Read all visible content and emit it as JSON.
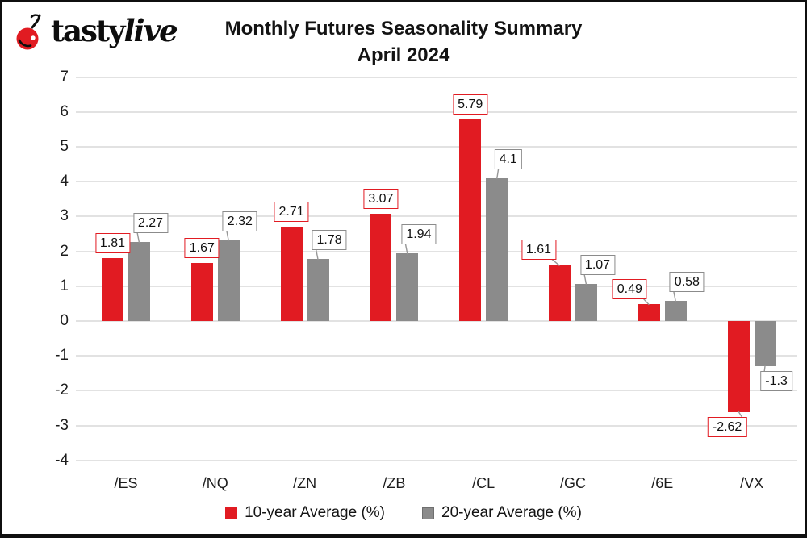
{
  "logo": {
    "tasty": "tasty",
    "live": "live"
  },
  "title": {
    "line1": "Monthly Futures Seasonality Summary",
    "line2": "April 2024"
  },
  "legend": {
    "items": [
      {
        "label": "10-year Average (%)",
        "color": "#e11b22"
      },
      {
        "label": "20-year Average (%)",
        "color": "#8b8b8b"
      }
    ]
  },
  "colors": {
    "red": "#e11b22",
    "gray": "#8b8b8b",
    "gridline": "#e2e2e2",
    "connector": "#979797",
    "text": "#1c1c1c",
    "label_background": "#ffffff"
  },
  "chart_data": {
    "type": "bar",
    "title": "Monthly Futures Seasonality Summary",
    "subtitle": "April 2024",
    "categories": [
      "/ES",
      "/NQ",
      "/ZN",
      "/ZB",
      "/CL",
      "/GC",
      "/6E",
      "/VX"
    ],
    "series": [
      {
        "name": "10-year Average (%)",
        "color": "#e11b22",
        "values": [
          1.81,
          1.67,
          2.71,
          3.07,
          5.79,
          1.61,
          0.49,
          -2.62
        ],
        "labels": [
          "1.81",
          "1.67",
          "2.71",
          "3.07",
          "5.79",
          "1.61",
          "0.49",
          "-2.62"
        ]
      },
      {
        "name": "20-year Average (%)",
        "color": "#8b8b8b",
        "values": [
          2.27,
          2.32,
          1.78,
          1.94,
          4.1,
          1.07,
          0.58,
          -1.3
        ],
        "labels": [
          "2.27",
          "2.32",
          "1.78",
          "1.94",
          "4.1",
          "1.07",
          "0.58",
          "-1.3"
        ]
      }
    ],
    "ylim": [
      -4,
      7
    ],
    "yticks": [
      7,
      6,
      5,
      4,
      3,
      2,
      1,
      0,
      -1,
      -2,
      -3,
      -4
    ],
    "grid": true,
    "legend_position": "bottom"
  }
}
